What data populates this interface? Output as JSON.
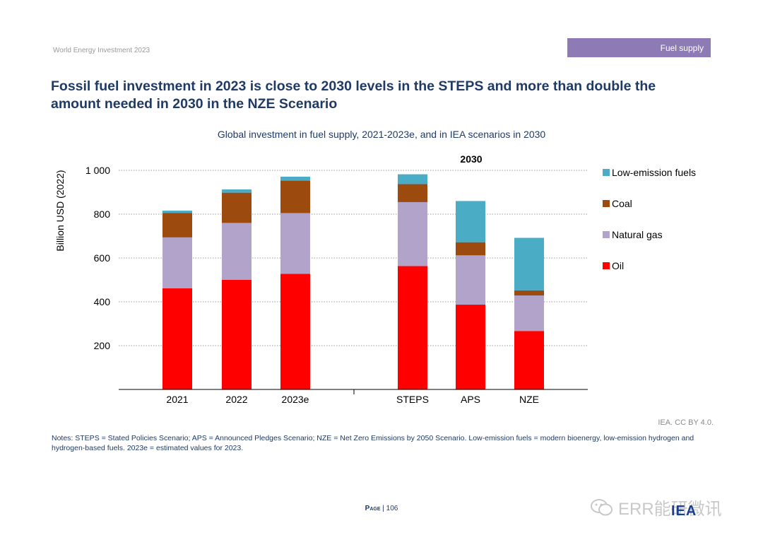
{
  "header": {
    "publication": "World Energy Investment 2023",
    "section": "Fuel supply"
  },
  "title": "Fossil fuel investment in 2023 is close to 2030 levels in the STEPS and more than double the amount needed in 2030 in the NZE Scenario",
  "chart_data": {
    "type": "bar",
    "stacked": true,
    "title": "Global investment in fuel supply, 2021-2023e, and in IEA scenarios in 2030",
    "ylabel": "Billion USD (2022)",
    "xlabel": "",
    "ylim": [
      0,
      1000
    ],
    "yticks": [
      200,
      400,
      600,
      800,
      1000
    ],
    "ytick_labels": [
      "200",
      "400",
      "600",
      "800",
      "1 000"
    ],
    "grid": true,
    "legend_position": "right",
    "group_label": "2030",
    "categories": [
      "2021",
      "2022",
      "2023e",
      "STEPS",
      "APS",
      "NZE"
    ],
    "series": [
      {
        "name": "Oil",
        "color": "#ff0000",
        "values": [
          462,
          500,
          528,
          563,
          387,
          267
        ]
      },
      {
        "name": "Natural gas",
        "color": "#b1a3ca",
        "values": [
          232,
          260,
          277,
          292,
          225,
          162
        ]
      },
      {
        "name": "Coal",
        "color": "#9c4a0e",
        "values": [
          112,
          138,
          148,
          82,
          60,
          23
        ]
      },
      {
        "name": "Low-emission fuels",
        "color": "#4bacc6",
        "values": [
          10,
          15,
          18,
          45,
          188,
          240
        ]
      }
    ]
  },
  "source": "IEA. CC BY 4.0.",
  "notes": "Notes: STEPS = Stated Policies Scenario; APS = Announced Pledges Scenario; NZE = Net Zero Emissions by 2050 Scenario. Low-emission fuels = modern bioenergy, low-emission hydrogen and hydrogen-based fuels. 2023e = estimated values for 2023.",
  "footer": {
    "page_word": "Page",
    "page_number": "106"
  },
  "watermark": {
    "text": "ERR能研微讯",
    "icon": "wechat-icon"
  },
  "logo": "IEA"
}
